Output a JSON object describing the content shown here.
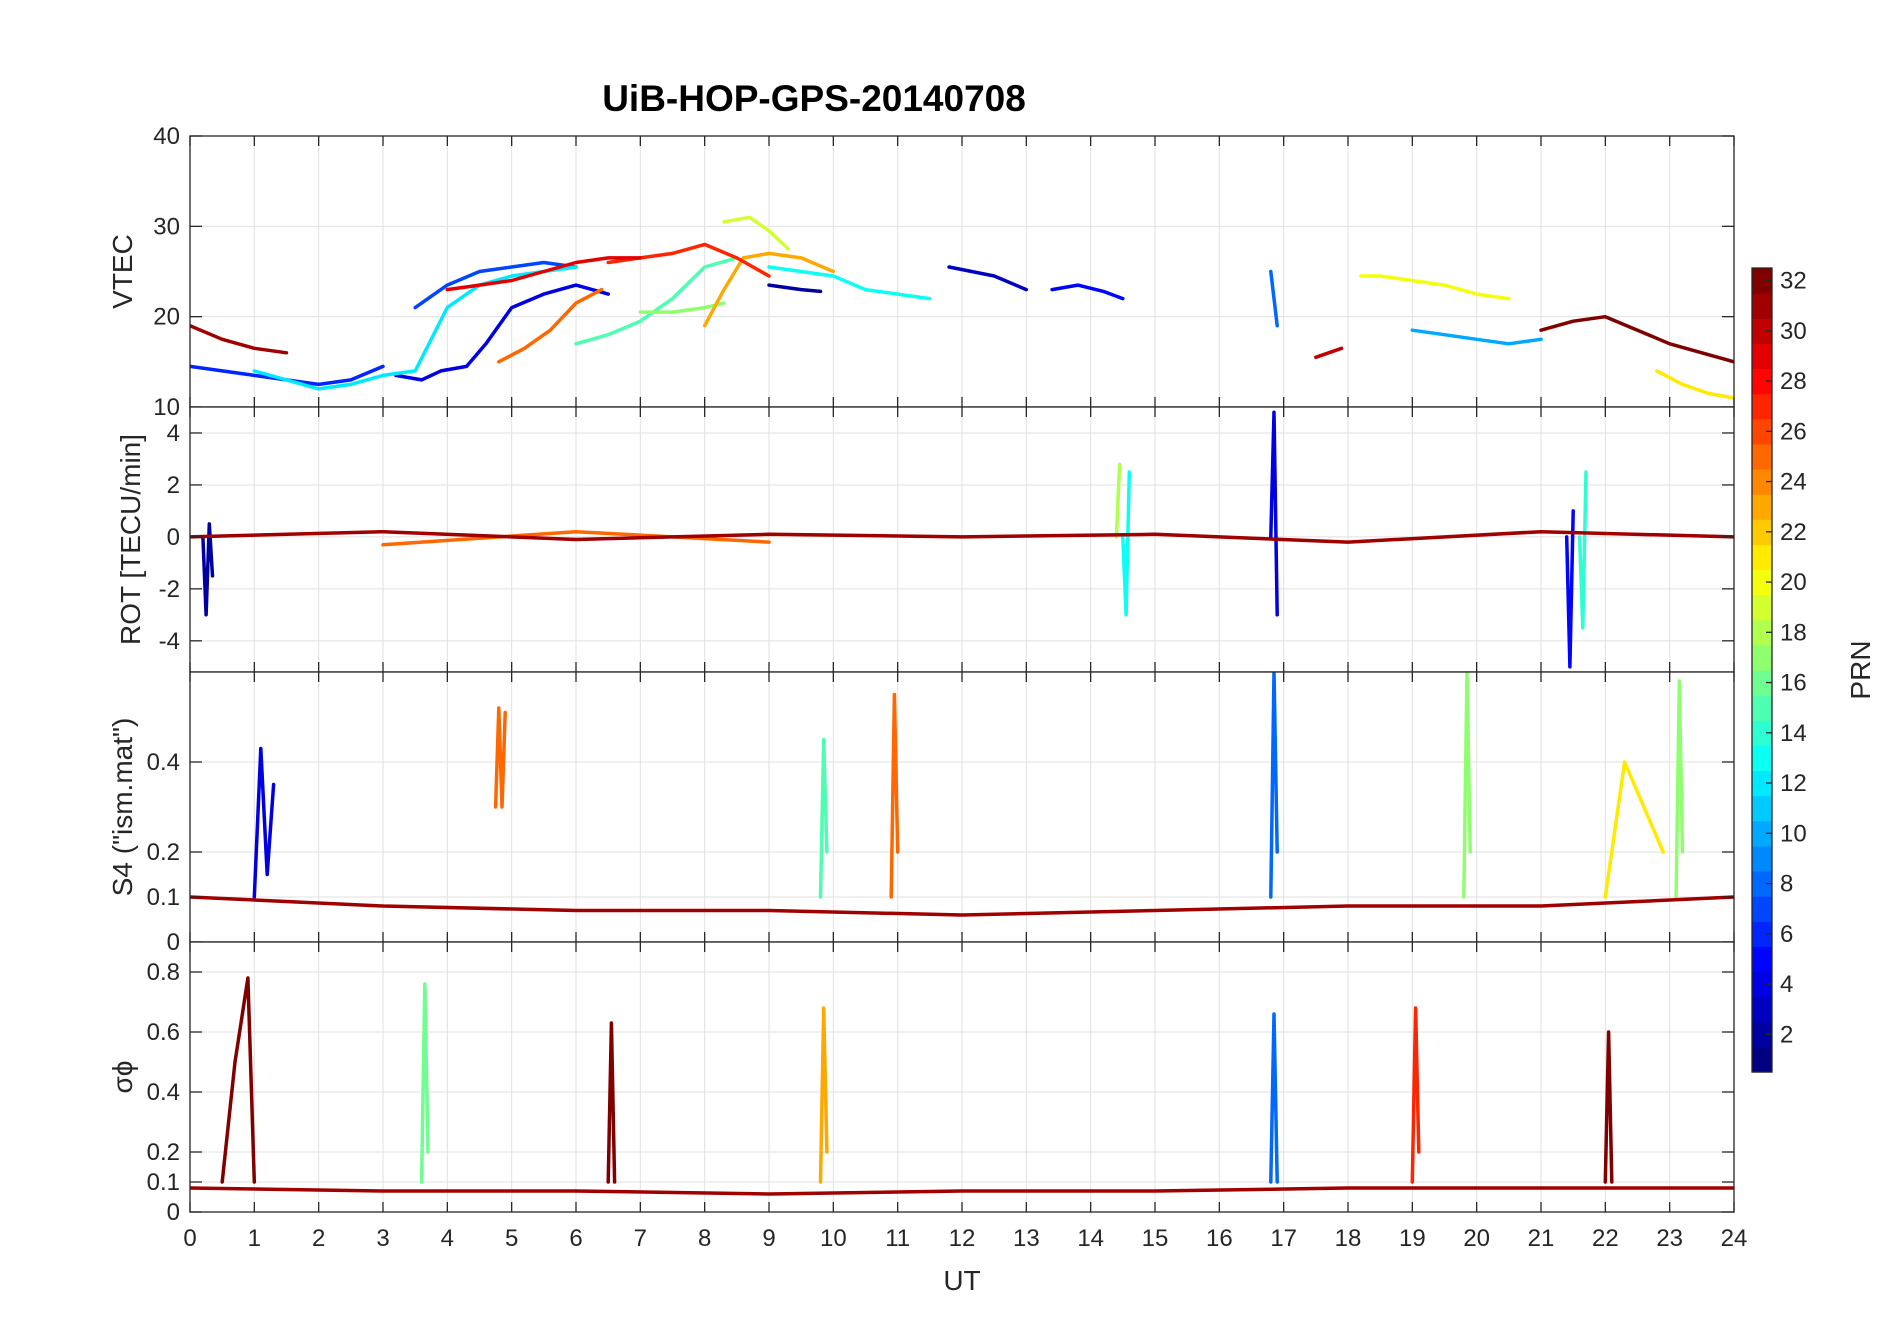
{
  "chart_data": {
    "type": "line",
    "title": "UiB-HOP-GPS-20140708",
    "xlabel": "UT",
    "xlim": [
      0,
      24
    ],
    "xticks": [
      "0",
      "1",
      "2",
      "3",
      "4",
      "5",
      "6",
      "7",
      "8",
      "9",
      "10",
      "11",
      "12",
      "13",
      "14",
      "15",
      "16",
      "17",
      "18",
      "19",
      "20",
      "21",
      "22",
      "23",
      "24"
    ],
    "grid": true,
    "panels": [
      {
        "id": "vtec",
        "ylabel": "VTEC",
        "ylim": [
          10,
          40
        ],
        "yticks": [
          10,
          20,
          30,
          40
        ],
        "ytick_labels": [
          "10",
          "20",
          "30",
          "40"
        ],
        "series": [
          {
            "prn": 2,
            "x": [
              9.0,
              9.5,
              9.8
            ],
            "y": [
              23.5,
              23.0,
              22.8
            ]
          },
          {
            "prn": 3,
            "x": [
              11.8,
              12.5,
              13.0
            ],
            "y": [
              25.5,
              24.5,
              23.0
            ]
          },
          {
            "prn": 4,
            "x": [
              3.2,
              3.6,
              3.9,
              4.3,
              4.6,
              5.0,
              5.5,
              6.0,
              6.5
            ],
            "y": [
              13.5,
              13.0,
              14.0,
              14.5,
              17.0,
              21.0,
              22.5,
              23.5,
              22.5
            ]
          },
          {
            "prn": 5,
            "x": [
              13.4,
              13.8,
              14.2,
              14.5
            ],
            "y": [
              23.0,
              23.5,
              22.8,
              22.0
            ]
          },
          {
            "prn": 6,
            "x": [
              0.0,
              0.5,
              1.0,
              1.5,
              2.0,
              2.5,
              3.0
            ],
            "y": [
              14.5,
              14.0,
              13.5,
              13.0,
              12.5,
              13.0,
              14.5
            ]
          },
          {
            "prn": 7,
            "x": [
              3.5,
              4.0,
              4.5,
              5.0,
              5.5,
              6.0
            ],
            "y": [
              21.0,
              23.5,
              25.0,
              25.5,
              26.0,
              25.5
            ]
          },
          {
            "prn": 8,
            "x": [
              16.8,
              16.85,
              16.9
            ],
            "y": [
              25.0,
              22.0,
              19.0
            ]
          },
          {
            "prn": 10,
            "x": [
              19.0,
              19.5,
              20.0,
              20.5,
              21.0
            ],
            "y": [
              18.5,
              18.0,
              17.5,
              17.0,
              17.5
            ]
          },
          {
            "prn": 12,
            "x": [
              1.0,
              1.5,
              2.0,
              2.5,
              3.0,
              3.5,
              4.0,
              4.5,
              5.0,
              5.5,
              6.0
            ],
            "y": [
              14.0,
              13.0,
              12.0,
              12.5,
              13.5,
              14.0,
              21.0,
              23.5,
              24.5,
              25.0,
              25.5
            ]
          },
          {
            "prn": 13,
            "x": [
              9.0,
              9.5,
              10.0,
              10.5,
              11.0,
              11.5
            ],
            "y": [
              25.5,
              25.0,
              24.5,
              23.0,
              22.5,
              22.0
            ]
          },
          {
            "prn": 15,
            "x": [
              6.0,
              6.5,
              7.0,
              7.5,
              8.0,
              8.5
            ],
            "y": [
              17.0,
              18.0,
              19.5,
              22.0,
              25.5,
              26.5
            ]
          },
          {
            "prn": 17,
            "x": [
              7.0,
              7.5,
              8.0,
              8.3
            ],
            "y": [
              20.5,
              20.5,
              21.0,
              21.5
            ]
          },
          {
            "prn": 19,
            "x": [
              8.3,
              8.7,
              9.0,
              9.3
            ],
            "y": [
              30.5,
              31.0,
              29.5,
              27.5
            ]
          },
          {
            "prn": 20,
            "x": [
              18.2,
              18.5,
              19.0,
              19.5,
              20.0,
              20.5
            ],
            "y": [
              24.5,
              24.5,
              24.0,
              23.5,
              22.5,
              22.0
            ]
          },
          {
            "prn": 21,
            "x": [
              22.8,
              23.2,
              23.6,
              24.0
            ],
            "y": [
              14.0,
              12.5,
              11.5,
              11.0
            ]
          },
          {
            "prn": 23,
            "x": [
              8.0,
              8.3,
              8.6,
              9.0,
              9.5,
              10.0
            ],
            "y": [
              19.0,
              23.0,
              26.5,
              27.0,
              26.5,
              25.0
            ]
          },
          {
            "prn": 25,
            "x": [
              4.8,
              5.2,
              5.6,
              6.0,
              6.4
            ],
            "y": [
              15.0,
              16.5,
              18.5,
              21.5,
              23.0
            ]
          },
          {
            "prn": 27,
            "x": [
              6.5,
              7.0,
              7.5,
              8.0,
              8.5,
              9.0
            ],
            "y": [
              26.0,
              26.5,
              27.0,
              28.0,
              26.5,
              24.5
            ]
          },
          {
            "prn": 29,
            "x": [
              4.0,
              4.5,
              5.0,
              5.5,
              6.0,
              6.5,
              7.0
            ],
            "y": [
              23.0,
              23.5,
              24.0,
              25.0,
              26.0,
              26.5,
              26.5
            ]
          },
          {
            "prn": 30,
            "x": [
              17.5,
              17.7,
              17.9
            ],
            "y": [
              15.5,
              16.0,
              16.5
            ]
          },
          {
            "prn": 31,
            "x": [
              0.0,
              0.5,
              1.0,
              1.5
            ],
            "y": [
              19.0,
              17.5,
              16.5,
              16.0
            ]
          },
          {
            "prn": 32,
            "x": [
              21.0,
              21.5,
              22.0,
              22.5,
              23.0,
              23.5,
              24.0
            ],
            "y": [
              18.5,
              19.5,
              20.0,
              18.5,
              17.0,
              16.0,
              15.0
            ]
          }
        ]
      },
      {
        "id": "rot",
        "ylabel": "ROT [TECU/min]",
        "ylim": [
          -5.2,
          5
        ],
        "yticks": [
          -4,
          -2,
          0,
          2,
          4
        ],
        "ytick_labels": [
          "-4",
          "-2",
          "0",
          "2",
          "4"
        ],
        "series": [
          {
            "prn": 2,
            "x": [
              0.2,
              0.25,
              0.3,
              0.35
            ],
            "y": [
              0,
              -3.0,
              0.5,
              -1.5
            ]
          },
          {
            "prn": 4,
            "x": [
              16.8,
              16.85,
              16.9
            ],
            "y": [
              0,
              4.8,
              -3.0
            ]
          },
          {
            "prn": 5,
            "x": [
              21.4,
              21.45,
              21.5
            ],
            "y": [
              0,
              -5.0,
              1.0
            ]
          },
          {
            "prn": 13,
            "x": [
              14.5,
              14.55,
              14.6
            ],
            "y": [
              0,
              -3.0,
              2.5
            ]
          },
          {
            "prn": 14,
            "x": [
              21.6,
              21.65,
              21.7
            ],
            "y": [
              0,
              -3.5,
              2.5
            ]
          },
          {
            "prn": 18,
            "x": [
              14.4,
              14.45
            ],
            "y": [
              0,
              2.8
            ]
          },
          {
            "prn": 25,
            "x": [
              3.0,
              6.0,
              9.0
            ],
            "y": [
              -0.3,
              0.2,
              -0.2
            ]
          },
          {
            "prn": 31,
            "x": [
              0.0,
              3.0,
              6.0,
              9.0,
              12.0,
              15.0,
              18.0,
              21.0,
              24.0
            ],
            "y": [
              0.0,
              0.2,
              -0.1,
              0.1,
              0.0,
              0.1,
              -0.2,
              0.2,
              0.0
            ]
          }
        ]
      },
      {
        "id": "s4",
        "ylabel": "S4 (\"ism.mat\")",
        "ylim": [
          0,
          0.6
        ],
        "yticks": [
          0,
          0.1,
          0.2,
          0.4
        ],
        "ytick_labels": [
          "0",
          "0.1",
          "0.2",
          "0.4"
        ],
        "series": [
          {
            "prn": 4,
            "x": [
              1.0,
              1.1,
              1.2,
              1.3
            ],
            "y": [
              0.1,
              0.43,
              0.15,
              0.35
            ]
          },
          {
            "prn": 8,
            "x": [
              16.8,
              16.85,
              16.9
            ],
            "y": [
              0.1,
              0.6,
              0.2
            ]
          },
          {
            "prn": 15,
            "x": [
              9.8,
              9.85,
              9.9
            ],
            "y": [
              0.1,
              0.45,
              0.2
            ]
          },
          {
            "prn": 17,
            "x": [
              19.8,
              19.85,
              19.9
            ],
            "y": [
              0.1,
              0.6,
              0.2
            ]
          },
          {
            "prn": 17,
            "x": [
              23.1,
              23.15,
              23.2
            ],
            "y": [
              0.1,
              0.58,
              0.2
            ]
          },
          {
            "prn": 21,
            "x": [
              22.0,
              22.3,
              22.6,
              22.9
            ],
            "y": [
              0.1,
              0.4,
              0.3,
              0.2
            ]
          },
          {
            "prn": 25,
            "x": [
              4.75,
              4.8,
              4.85,
              4.9
            ],
            "y": [
              0.3,
              0.52,
              0.3,
              0.51
            ]
          },
          {
            "prn": 25,
            "x": [
              10.9,
              10.95,
              11.0
            ],
            "y": [
              0.1,
              0.55,
              0.2
            ]
          },
          {
            "prn": 31,
            "x": [
              0.0,
              3.0,
              6.0,
              9.0,
              12.0,
              15.0,
              18.0,
              21.0,
              24.0
            ],
            "y": [
              0.1,
              0.08,
              0.07,
              0.07,
              0.06,
              0.07,
              0.08,
              0.08,
              0.1
            ]
          }
        ]
      },
      {
        "id": "sigma",
        "ylabel": "σϕ",
        "ylim": [
          0,
          0.9
        ],
        "yticks": [
          0,
          0.1,
          0.2,
          0.4,
          0.6,
          0.8
        ],
        "ytick_labels": [
          "0",
          "0.1",
          "0.2",
          "0.4",
          "0.6",
          "0.8"
        ],
        "series": [
          {
            "prn": 8,
            "x": [
              16.8,
              16.85,
              16.9
            ],
            "y": [
              0.1,
              0.66,
              0.1
            ]
          },
          {
            "prn": 16,
            "x": [
              3.6,
              3.65,
              3.7
            ],
            "y": [
              0.1,
              0.76,
              0.2
            ]
          },
          {
            "prn": 23,
            "x": [
              9.8,
              9.85,
              9.9
            ],
            "y": [
              0.1,
              0.68,
              0.2
            ]
          },
          {
            "prn": 27,
            "x": [
              19.0,
              19.05,
              19.1
            ],
            "y": [
              0.1,
              0.68,
              0.2
            ]
          },
          {
            "prn": 32,
            "x": [
              0.5,
              0.7,
              0.9,
              1.0
            ],
            "y": [
              0.1,
              0.5,
              0.78,
              0.1
            ]
          },
          {
            "prn": 32,
            "x": [
              6.5,
              6.55,
              6.6
            ],
            "y": [
              0.1,
              0.63,
              0.1
            ]
          },
          {
            "prn": 32,
            "x": [
              22.0,
              22.05,
              22.1
            ],
            "y": [
              0.1,
              0.6,
              0.1
            ]
          },
          {
            "prn": 31,
            "x": [
              0.0,
              3.0,
              6.0,
              9.0,
              12.0,
              15.0,
              18.0,
              21.0,
              24.0
            ],
            "y": [
              0.08,
              0.07,
              0.07,
              0.06,
              0.07,
              0.07,
              0.08,
              0.08,
              0.08
            ]
          }
        ]
      }
    ],
    "colorbar": {
      "label": "PRN",
      "colormap": "jet",
      "range": [
        1,
        32
      ],
      "ticks": [
        2,
        4,
        6,
        8,
        10,
        12,
        14,
        16,
        18,
        20,
        22,
        24,
        26,
        28,
        30,
        32
      ]
    }
  }
}
